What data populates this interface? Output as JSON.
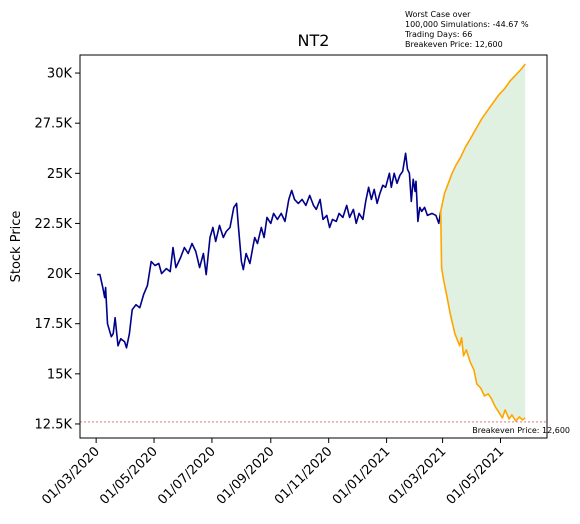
{
  "chart_data": {
    "type": "line",
    "title": "NT2",
    "xlabel": "",
    "ylabel": "Stock Price",
    "x_tick_labels": [
      "01/03/2020",
      "01/05/2020",
      "01/07/2020",
      "01/09/2020",
      "01/11/2020",
      "01/01/2021",
      "01/03/2021",
      "01/05/2021"
    ],
    "y_ticks": [
      12500,
      15000,
      17500,
      20000,
      22500,
      25000,
      27500,
      30000
    ],
    "y_tick_labels": [
      "12.5K",
      "15K",
      "17.5K",
      "20K",
      "22.5K",
      "25K",
      "27.5K",
      "30K"
    ],
    "ylim": [
      11800,
      30900
    ],
    "xlim": [
      "2020-02-13",
      "2021-06-19"
    ],
    "grid": false,
    "annotation_lines": [
      "Worst Case over",
      "100,000 Simulations: -44.67 %",
      "Trading Days: 66",
      "Breakeven Price: 12,600"
    ],
    "breakeven": {
      "value": 12600,
      "label": "Breakeven Price: 12,600",
      "color": "#d62728"
    },
    "band_color": "#c8e6c9",
    "series": [
      {
        "role": "historical",
        "color": "#00008b",
        "points": [
          [
            "2020-03-02",
            19950
          ],
          [
            "2020-03-05",
            19950
          ],
          [
            "2020-03-08",
            19300
          ],
          [
            "2020-03-10",
            18800
          ],
          [
            "2020-03-11",
            19300
          ],
          [
            "2020-03-13",
            17500
          ],
          [
            "2020-03-17",
            16850
          ],
          [
            "2020-03-19",
            17000
          ],
          [
            "2020-03-21",
            17800
          ],
          [
            "2020-03-24",
            16400
          ],
          [
            "2020-03-27",
            16750
          ],
          [
            "2020-03-31",
            16600
          ],
          [
            "2020-04-02",
            16300
          ],
          [
            "2020-04-05",
            17000
          ],
          [
            "2020-04-08",
            18200
          ],
          [
            "2020-04-12",
            18450
          ],
          [
            "2020-04-16",
            18300
          ],
          [
            "2020-04-20",
            18950
          ],
          [
            "2020-04-24",
            19400
          ],
          [
            "2020-04-28",
            20600
          ],
          [
            "2020-05-02",
            20400
          ],
          [
            "2020-05-06",
            20500
          ],
          [
            "2020-05-09",
            20000
          ],
          [
            "2020-05-14",
            20250
          ],
          [
            "2020-05-18",
            20100
          ],
          [
            "2020-05-21",
            21300
          ],
          [
            "2020-05-24",
            20300
          ],
          [
            "2020-05-29",
            20800
          ],
          [
            "2020-06-02",
            21300
          ],
          [
            "2020-06-06",
            21000
          ],
          [
            "2020-06-10",
            21500
          ],
          [
            "2020-06-14",
            21100
          ],
          [
            "2020-06-18",
            20300
          ],
          [
            "2020-06-22",
            21000
          ],
          [
            "2020-06-25",
            19950
          ],
          [
            "2020-06-29",
            21800
          ],
          [
            "2020-07-02",
            22300
          ],
          [
            "2020-07-05",
            21600
          ],
          [
            "2020-07-09",
            22400
          ],
          [
            "2020-07-13",
            21800
          ],
          [
            "2020-07-16",
            22100
          ],
          [
            "2020-07-20",
            22300
          ],
          [
            "2020-07-24",
            23300
          ],
          [
            "2020-07-27",
            23500
          ],
          [
            "2020-07-29",
            22300
          ],
          [
            "2020-08-01",
            20600
          ],
          [
            "2020-08-03",
            20200
          ],
          [
            "2020-08-06",
            21000
          ],
          [
            "2020-08-10",
            20500
          ],
          [
            "2020-08-13",
            21300
          ],
          [
            "2020-08-15",
            21800
          ],
          [
            "2020-08-18",
            21500
          ],
          [
            "2020-08-22",
            22300
          ],
          [
            "2020-08-25",
            21800
          ],
          [
            "2020-08-28",
            22800
          ],
          [
            "2020-09-01",
            22500
          ],
          [
            "2020-09-04",
            23000
          ],
          [
            "2020-09-08",
            22700
          ],
          [
            "2020-09-12",
            23000
          ],
          [
            "2020-09-16",
            22600
          ],
          [
            "2020-09-20",
            23700
          ],
          [
            "2020-09-23",
            24150
          ],
          [
            "2020-09-26",
            23700
          ],
          [
            "2020-09-30",
            23500
          ],
          [
            "2020-10-04",
            23700
          ],
          [
            "2020-10-08",
            23400
          ],
          [
            "2020-10-12",
            23900
          ],
          [
            "2020-10-16",
            23400
          ],
          [
            "2020-10-19",
            23200
          ],
          [
            "2020-10-23",
            23700
          ],
          [
            "2020-10-26",
            22700
          ],
          [
            "2020-10-30",
            22900
          ],
          [
            "2020-11-02",
            22300
          ],
          [
            "2020-11-05",
            22700
          ],
          [
            "2020-11-09",
            22600
          ],
          [
            "2020-11-12",
            23000
          ],
          [
            "2020-11-16",
            22800
          ],
          [
            "2020-11-20",
            23400
          ],
          [
            "2020-11-23",
            22800
          ],
          [
            "2020-11-27",
            23200
          ],
          [
            "2020-11-30",
            22500
          ],
          [
            "2020-12-03",
            23000
          ],
          [
            "2020-12-07",
            22700
          ],
          [
            "2020-12-10",
            23600
          ],
          [
            "2020-12-13",
            24300
          ],
          [
            "2020-12-16",
            23700
          ],
          [
            "2020-12-19",
            24200
          ],
          [
            "2020-12-22",
            23500
          ],
          [
            "2020-12-25",
            24000
          ],
          [
            "2020-12-28",
            24400
          ],
          [
            "2020-12-31",
            24300
          ],
          [
            "2021-01-04",
            25000
          ],
          [
            "2021-01-06",
            24300
          ],
          [
            "2021-01-09",
            25000
          ],
          [
            "2021-01-12",
            24500
          ],
          [
            "2021-01-15",
            24900
          ],
          [
            "2021-01-18",
            25100
          ],
          [
            "2021-01-21",
            26000
          ],
          [
            "2021-01-23",
            25200
          ],
          [
            "2021-01-25",
            25000
          ],
          [
            "2021-01-27",
            23600
          ],
          [
            "2021-01-29",
            24700
          ],
          [
            "2021-01-31",
            24100
          ],
          [
            "2021-02-01",
            24600
          ],
          [
            "2021-02-03",
            22600
          ],
          [
            "2021-02-05",
            23300
          ],
          [
            "2021-02-07",
            23100
          ],
          [
            "2021-02-10",
            23300
          ],
          [
            "2021-02-13",
            22900
          ],
          [
            "2021-02-18",
            23000
          ],
          [
            "2021-02-22",
            22900
          ],
          [
            "2021-02-25",
            22500
          ],
          [
            "2021-02-27",
            23100
          ]
        ]
      },
      {
        "role": "best-case-simulation",
        "color": "#ffa500",
        "points": [
          [
            "2021-02-27",
            23100
          ],
          [
            "2021-03-03",
            24000
          ],
          [
            "2021-03-07",
            24500
          ],
          [
            "2021-03-11",
            25000
          ],
          [
            "2021-03-15",
            25400
          ],
          [
            "2021-03-20",
            25800
          ],
          [
            "2021-03-25",
            26300
          ],
          [
            "2021-03-30",
            26700
          ],
          [
            "2021-04-05",
            27200
          ],
          [
            "2021-04-11",
            27700
          ],
          [
            "2021-04-17",
            28100
          ],
          [
            "2021-04-23",
            28500
          ],
          [
            "2021-04-29",
            28900
          ],
          [
            "2021-05-05",
            29200
          ],
          [
            "2021-05-11",
            29600
          ],
          [
            "2021-05-17",
            29900
          ],
          [
            "2021-05-23",
            30200
          ],
          [
            "2021-05-27",
            30450
          ]
        ]
      },
      {
        "role": "worst-case-simulation",
        "color": "#ffa500",
        "points": [
          [
            "2021-02-27",
            23100
          ],
          [
            "2021-02-28",
            20300
          ],
          [
            "2021-03-02",
            19700
          ],
          [
            "2021-03-05",
            19000
          ],
          [
            "2021-03-09",
            18000
          ],
          [
            "2021-03-14",
            17000
          ],
          [
            "2021-03-19",
            16400
          ],
          [
            "2021-03-21",
            16800
          ],
          [
            "2021-03-23",
            15900
          ],
          [
            "2021-03-26",
            16200
          ],
          [
            "2021-03-30",
            15600
          ],
          [
            "2021-04-03",
            15200
          ],
          [
            "2021-04-06",
            14500
          ],
          [
            "2021-04-10",
            14300
          ],
          [
            "2021-04-14",
            13900
          ],
          [
            "2021-04-18",
            14000
          ],
          [
            "2021-04-21",
            13800
          ],
          [
            "2021-04-25",
            13400
          ],
          [
            "2021-04-29",
            13100
          ],
          [
            "2021-05-03",
            12800
          ],
          [
            "2021-05-06",
            13200
          ],
          [
            "2021-05-10",
            12750
          ],
          [
            "2021-05-13",
            12950
          ],
          [
            "2021-05-17",
            12650
          ],
          [
            "2021-05-21",
            12850
          ],
          [
            "2021-05-24",
            12700
          ],
          [
            "2021-05-27",
            12800
          ]
        ]
      }
    ]
  }
}
